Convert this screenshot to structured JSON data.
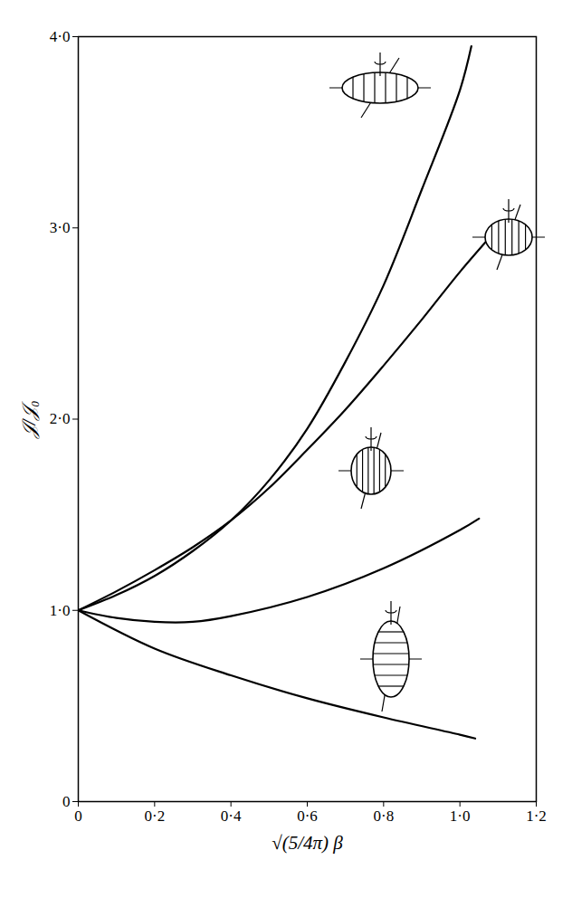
{
  "chart_data": {
    "type": "line",
    "xlabel": "√(5/4π) β",
    "ylabel": "𝒥/𝒥₀",
    "xlim": [
      0,
      1.2
    ],
    "ylim": [
      0,
      4
    ],
    "xticks": [
      0,
      {
        "value": 0.2,
        "label": "0·2"
      },
      {
        "value": 0.4,
        "label": "0·4"
      },
      {
        "value": 0.6,
        "label": "0·6"
      },
      {
        "value": 0.8,
        "label": "0·8"
      },
      {
        "value": 1.0,
        "label": "1·0"
      },
      {
        "value": 1.2,
        "label": "1·2"
      }
    ],
    "yticks": [
      0,
      {
        "value": 1,
        "label": "1·0"
      },
      {
        "value": 2,
        "label": "2·0"
      },
      {
        "value": 3,
        "label": "3·0"
      },
      {
        "value": 4,
        "label": "4·0"
      }
    ],
    "grid": false,
    "series": [
      {
        "color": "#000000",
        "x": [
          0,
          0.1,
          0.2,
          0.3,
          0.4,
          0.5,
          0.6,
          0.7,
          0.8,
          0.9,
          1.0,
          1.03
        ],
        "values": [
          1.0,
          1.08,
          1.18,
          1.31,
          1.47,
          1.68,
          1.95,
          2.3,
          2.7,
          3.2,
          3.72,
          3.95
        ]
      },
      {
        "color": "#000000",
        "x": [
          0,
          0.1,
          0.2,
          0.3,
          0.4,
          0.5,
          0.6,
          0.7,
          0.8,
          0.9,
          1.0,
          1.1
        ],
        "values": [
          1.0,
          1.1,
          1.21,
          1.33,
          1.47,
          1.64,
          1.84,
          2.05,
          2.28,
          2.52,
          2.77,
          3.0
        ]
      },
      {
        "color": "#000000",
        "x": [
          0,
          0.1,
          0.2,
          0.3,
          0.4,
          0.6,
          0.8,
          1.0,
          1.05
        ],
        "values": [
          1.0,
          0.96,
          0.94,
          0.94,
          0.97,
          1.07,
          1.22,
          1.42,
          1.48
        ]
      },
      {
        "color": "#000000",
        "x": [
          0,
          0.2,
          0.4,
          0.6,
          0.8,
          1.0,
          1.04
        ],
        "values": [
          1.0,
          0.8,
          0.66,
          0.54,
          0.44,
          0.35,
          0.33
        ]
      }
    ]
  }
}
